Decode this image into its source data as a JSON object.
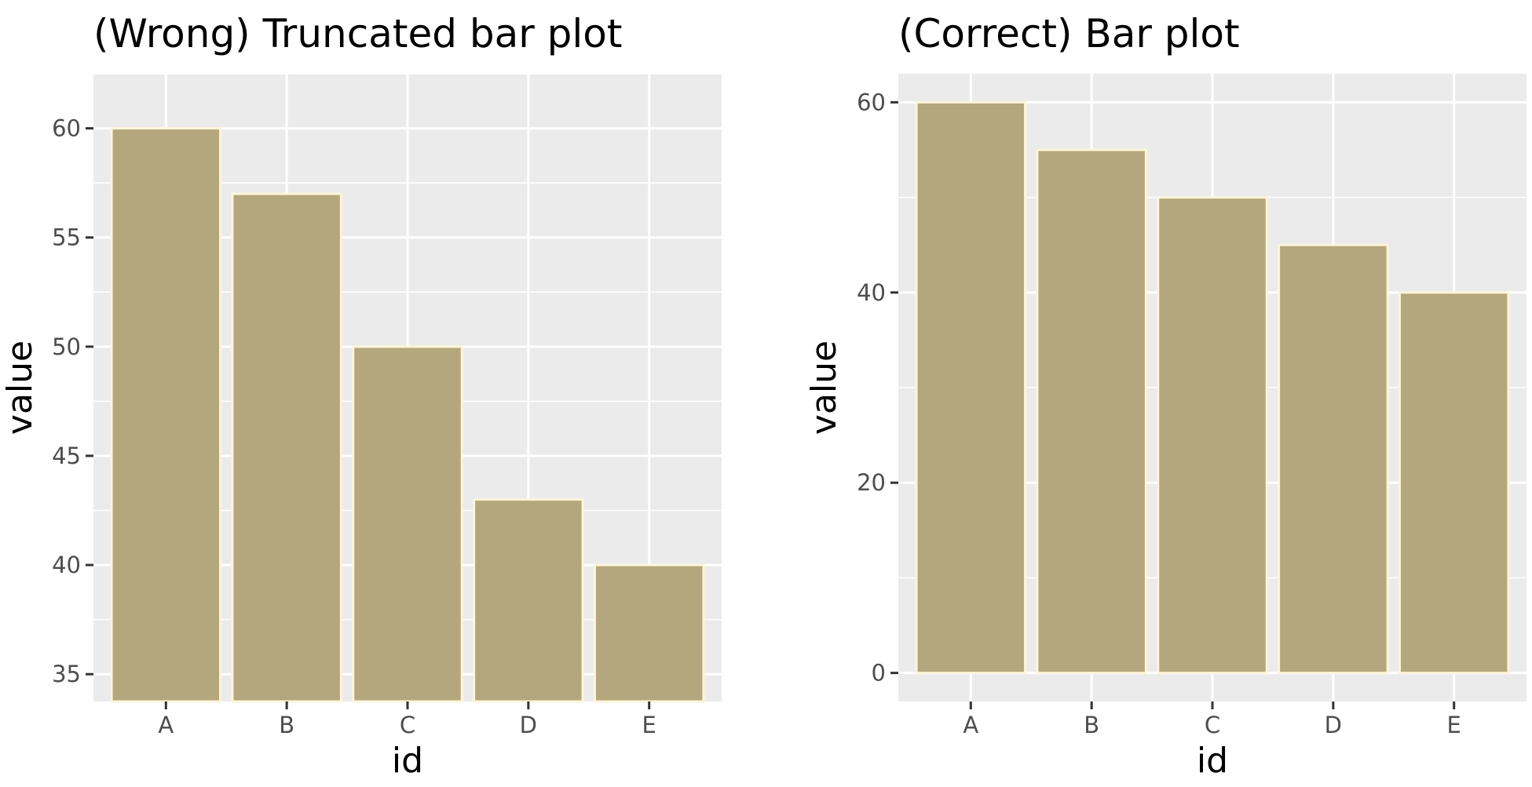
{
  "colors": {
    "panel_background": "#ebebeb",
    "gridline": "#ffffff",
    "bar_fill": "#b5a77d",
    "bar_outline": "#fdf5d8",
    "tick_text": "#4d4d4d",
    "tick_mark": "#333333"
  },
  "chart_data": [
    {
      "type": "bar",
      "title": "(Wrong) Truncated bar plot",
      "xlabel": "id",
      "ylabel": "value",
      "categories": [
        "A",
        "B",
        "C",
        "D",
        "E"
      ],
      "values": [
        60,
        57,
        50,
        43,
        40
      ],
      "ylim": [
        33.75,
        62.5
      ],
      "bar_base": 33.75,
      "yticks": [
        "35",
        "40",
        "45",
        "50",
        "55",
        "60"
      ],
      "grid": true,
      "legend": "none"
    },
    {
      "type": "bar",
      "title": "(Correct) Bar plot",
      "xlabel": "id",
      "ylabel": "value",
      "categories": [
        "A",
        "B",
        "C",
        "D",
        "E"
      ],
      "values": [
        60,
        55,
        50,
        45,
        40
      ],
      "ylim": [
        -3,
        63
      ],
      "bar_base": 0,
      "yticks": [
        "0",
        "20",
        "40",
        "60"
      ],
      "grid": true,
      "legend": "none"
    }
  ]
}
